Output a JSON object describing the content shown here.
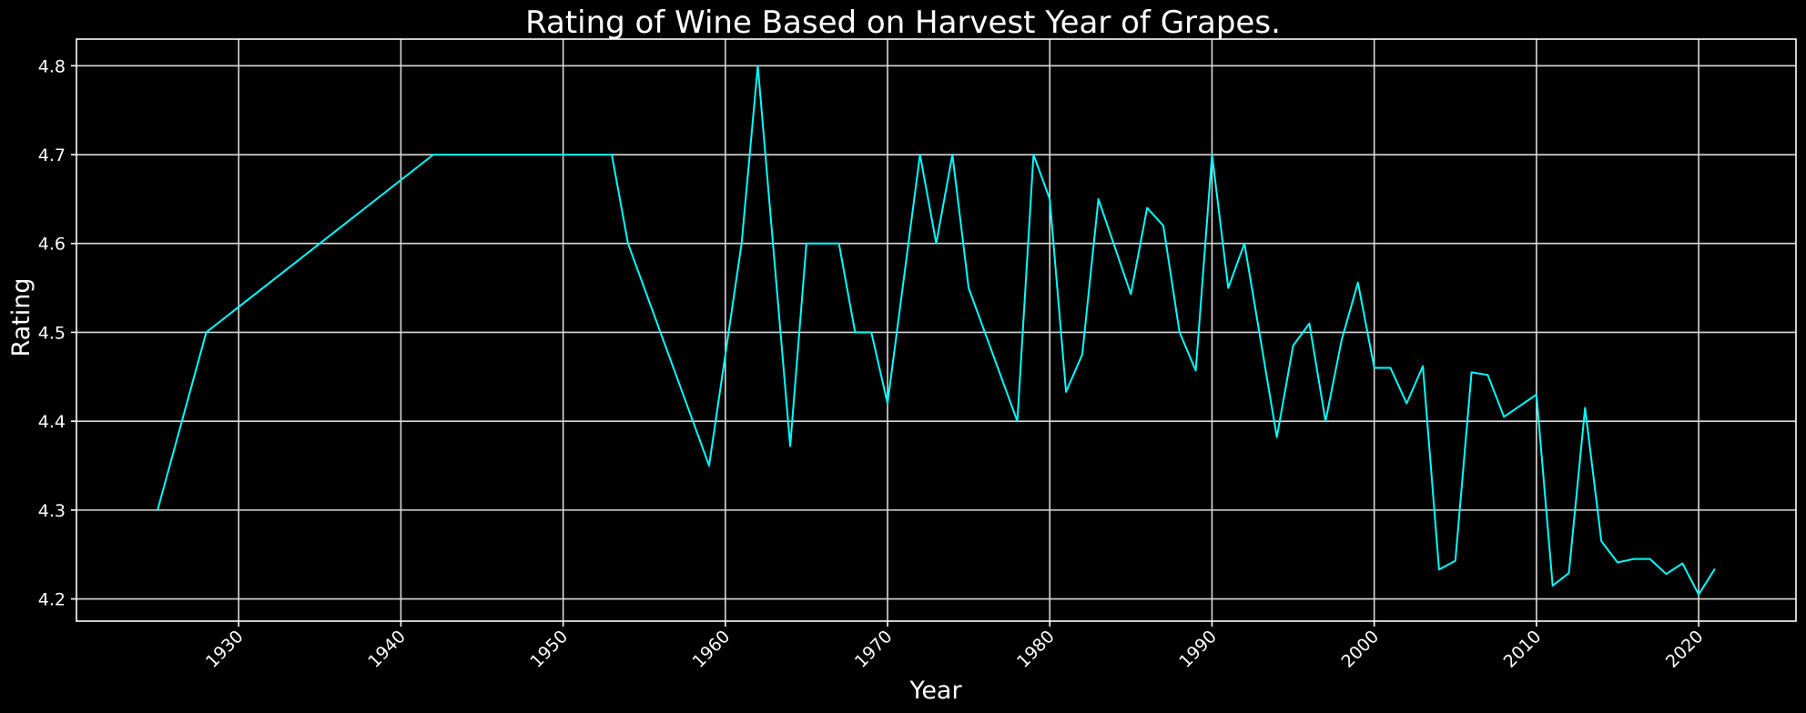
{
  "chart_data": {
    "type": "line",
    "title": "Rating of Wine Based on Harvest Year of Grapes.",
    "xlabel": "Year",
    "ylabel": "Rating",
    "xlim": [
      1920,
      2026
    ],
    "ylim": [
      4.175,
      4.83
    ],
    "xticks": [
      1930,
      1940,
      1950,
      1960,
      1970,
      1980,
      1990,
      2000,
      2010,
      2020
    ],
    "yticks": [
      4.2,
      4.3,
      4.4,
      4.5,
      4.6,
      4.7,
      4.8
    ],
    "grid": true,
    "colors": {
      "background": "#000000",
      "line": "#00ffff",
      "grid": "#d9d9d9",
      "text": "#ffffff"
    },
    "series": [
      {
        "x": [
          1925,
          1928,
          1942,
          1953,
          1954,
          1959,
          1961,
          1962,
          1964,
          1965,
          1967,
          1968,
          1969,
          1970,
          1972,
          1973,
          1974,
          1975,
          1978,
          1979,
          1980,
          1981,
          1982,
          1983,
          1985,
          1986,
          1987,
          1988,
          1989,
          1990,
          1991,
          1992,
          1994,
          1995,
          1996,
          1997,
          1998,
          1999,
          2000,
          2001,
          2002,
          2003,
          2004,
          2005,
          2006,
          2007,
          2008,
          2010,
          2011,
          2012,
          2013,
          2014,
          2015,
          2016,
          2017,
          2018,
          2019,
          2020,
          2021
        ],
        "values": [
          4.3,
          4.5,
          4.7,
          4.7,
          4.6,
          4.35,
          4.6,
          4.8,
          4.372,
          4.6,
          4.6,
          4.5,
          4.5,
          4.42,
          4.7,
          4.6,
          4.7,
          4.55,
          4.4,
          4.7,
          4.65,
          4.433,
          4.475,
          4.65,
          4.543,
          4.64,
          4.62,
          4.5,
          4.457,
          4.7,
          4.55,
          4.6,
          4.382,
          4.485,
          4.51,
          4.4,
          4.492,
          4.556,
          4.46,
          4.46,
          4.42,
          4.462,
          4.233,
          4.243,
          4.455,
          4.452,
          4.405,
          4.43,
          4.215,
          4.229,
          4.415,
          4.265,
          4.241,
          4.245,
          4.245,
          4.228,
          4.24,
          4.205,
          4.234
        ]
      }
    ]
  }
}
